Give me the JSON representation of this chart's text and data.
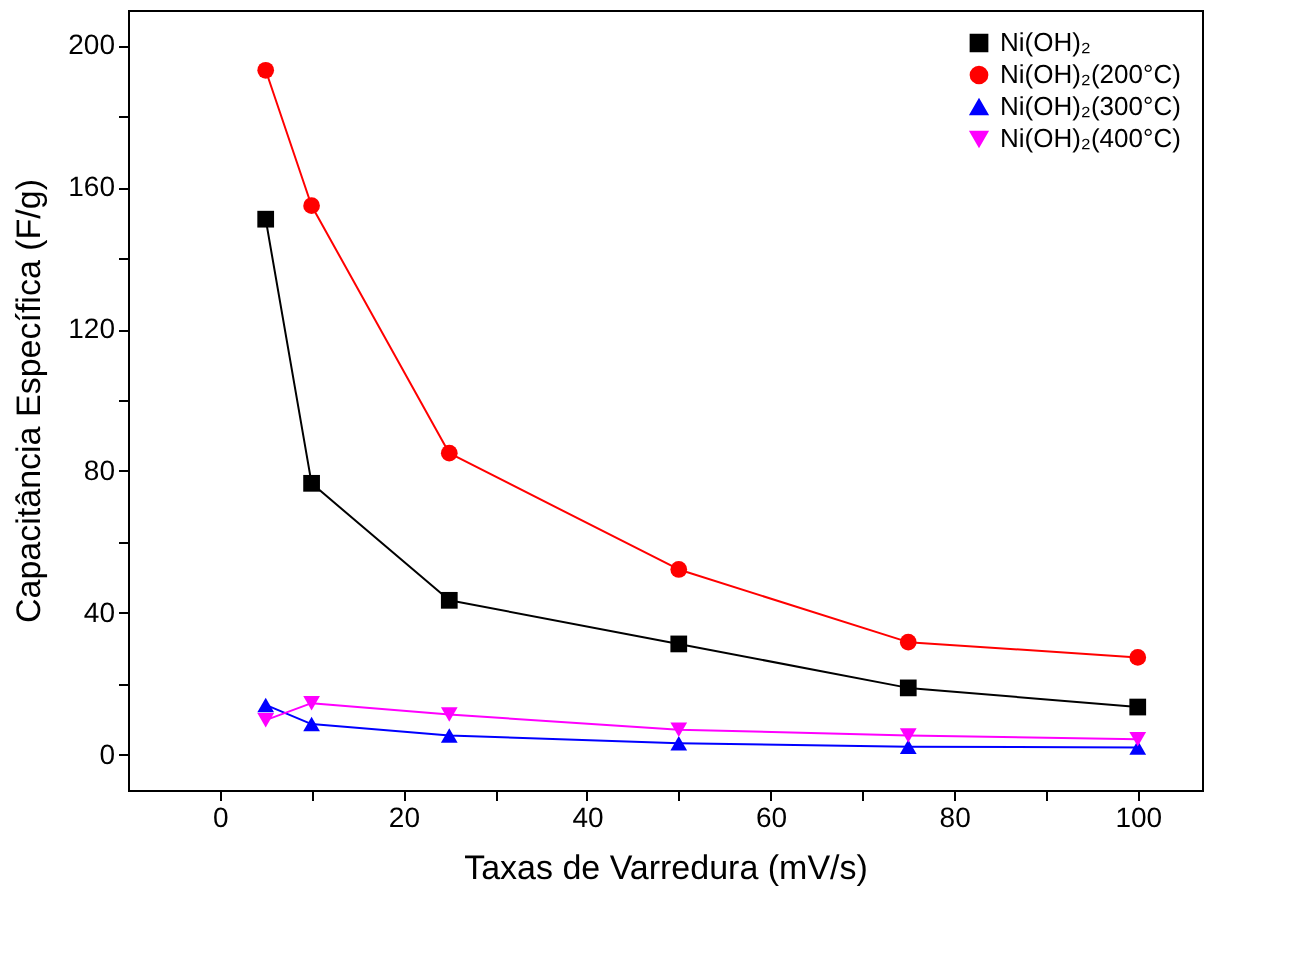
{
  "chart_data": {
    "type": "line",
    "xlabel": "Taxas de Varredura (mV/s)",
    "ylabel": "Capacitância Específica (F/g)",
    "x": [
      5,
      10,
      25,
      50,
      75,
      100
    ],
    "series": [
      {
        "name": "Ni(OH)₂",
        "color": "#000000",
        "marker": "square",
        "values": [
          151,
          76.5,
          43.5,
          31.2,
          18.8,
          13.4
        ]
      },
      {
        "name": "Ni(OH)₂(200°C)",
        "color": "#ff0000",
        "marker": "circle",
        "values": [
          193,
          154.8,
          85,
          52.2,
          31.7,
          27.4
        ]
      },
      {
        "name": "Ni(OH)₂(300°C)",
        "color": "#0000ff",
        "marker": "triangle",
        "values": [
          14,
          8.6,
          5.4,
          3.2,
          2.2,
          2
        ]
      },
      {
        "name": "Ni(OH)₂(400°C)",
        "color": "#ff00ff",
        "marker": "triangle-down",
        "values": [
          9.7,
          14.5,
          11.3,
          7,
          5.4,
          4.3
        ]
      }
    ],
    "xlim": [
      -10,
      107
    ],
    "ylim": [
      -10,
      210
    ],
    "xticks": [
      0,
      {
        "value": 10,
        "label": null
      },
      20,
      {
        "value": 30,
        "label": null
      },
      40,
      {
        "value": 50,
        "label": null
      },
      60,
      {
        "value": 70,
        "label": null
      },
      80,
      {
        "value": 90,
        "label": null
      },
      100
    ],
    "yticks": [
      0,
      {
        "value": 20,
        "label": null
      },
      40,
      {
        "value": 60,
        "label": null
      },
      80,
      {
        "value": 100,
        "label": null
      },
      120,
      {
        "value": 140,
        "label": null
      },
      160,
      {
        "value": 180,
        "label": null
      },
      200
    ],
    "legend": "top right",
    "grid": false,
    "line_style": "solid"
  }
}
